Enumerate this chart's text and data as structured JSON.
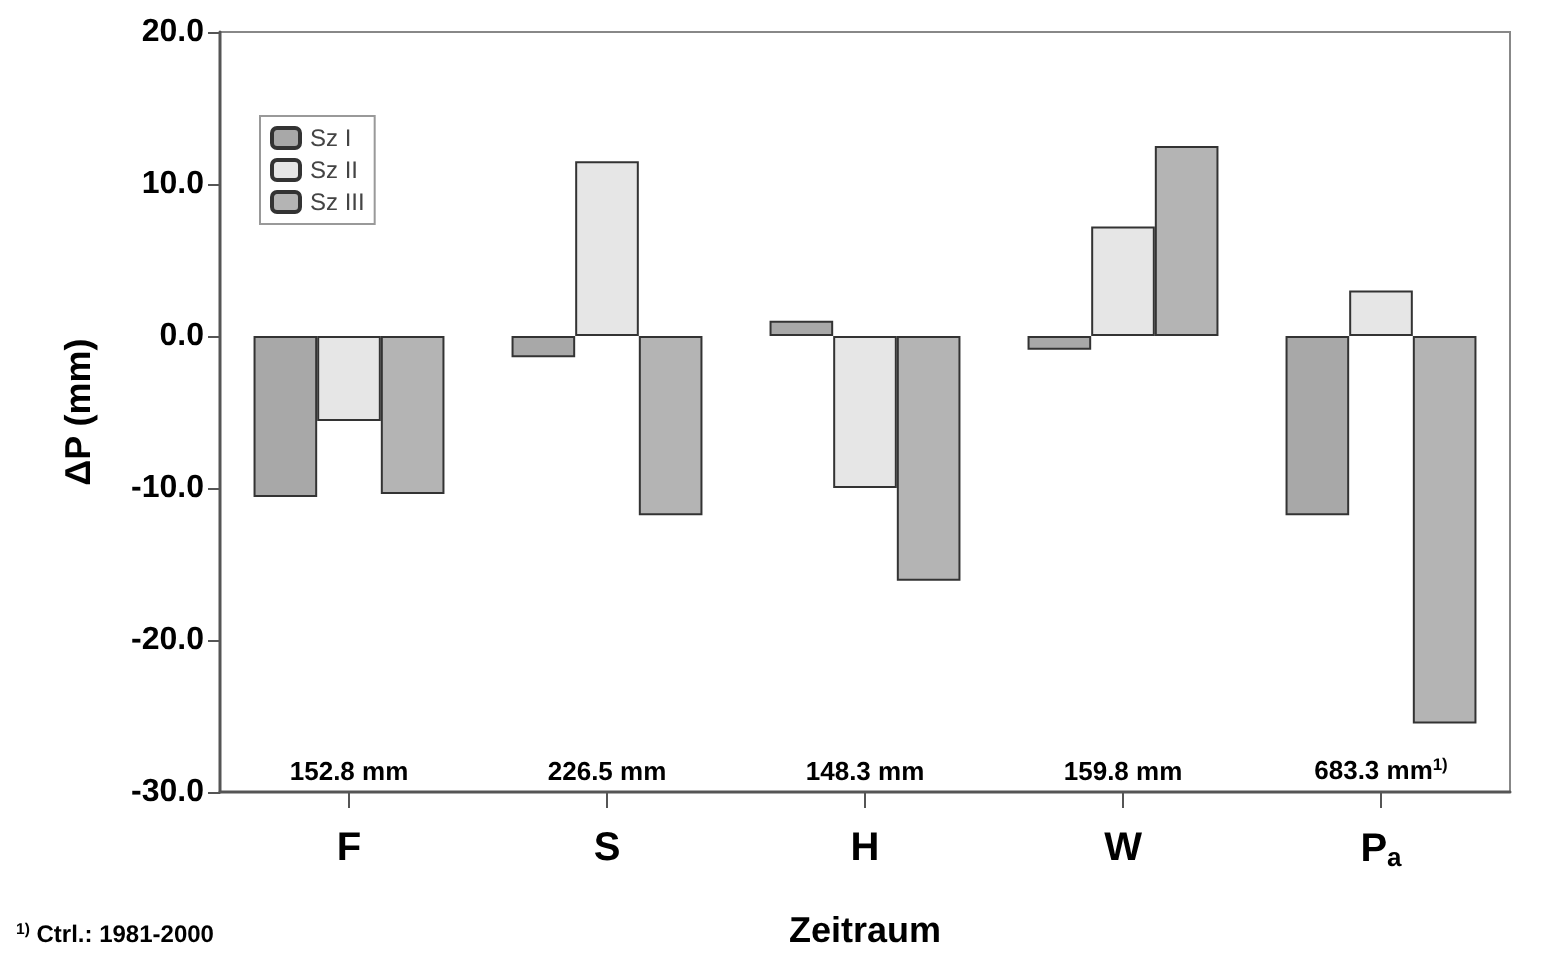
{
  "chart_data": {
    "type": "bar",
    "xlabel": "Zeitraum",
    "ylabel": "ΔP (mm)",
    "categories": [
      "F",
      "S",
      "H",
      "W",
      "P$_{a}$"
    ],
    "series": [
      {
        "name": "Sz I",
        "color": "#a8a8a8",
        "values": [
          -10.6,
          -1.4,
          1.0,
          -0.9,
          -11.8
        ]
      },
      {
        "name": "Sz II",
        "color": "#e6e6e6",
        "values": [
          -5.6,
          11.5,
          -10.0,
          7.2,
          3.0
        ]
      },
      {
        "name": "Sz III",
        "color": "#b4b4b4",
        "values": [
          -10.4,
          -11.8,
          -16.1,
          12.5,
          -25.5
        ]
      }
    ],
    "ylim": [
      -30,
      20
    ],
    "yticks": [
      {
        "value": -30,
        "label": "-30.0"
      },
      {
        "value": -20,
        "label": "-20.0"
      },
      {
        "value": -10,
        "label": "-10.0"
      },
      {
        "value": 0,
        "label": "0.0"
      },
      {
        "value": 10,
        "label": "10.0"
      },
      {
        "value": 20,
        "label": "20.0"
      }
    ],
    "annotations": [
      "152.8 mm",
      "226.5 mm",
      "148.3 mm",
      "159.8 mm",
      "683.3 mm$^{1)}$",
      "$^{1)}$ Ctrl.: 1981-2000"
    ],
    "grid": false,
    "legend": "top left"
  }
}
